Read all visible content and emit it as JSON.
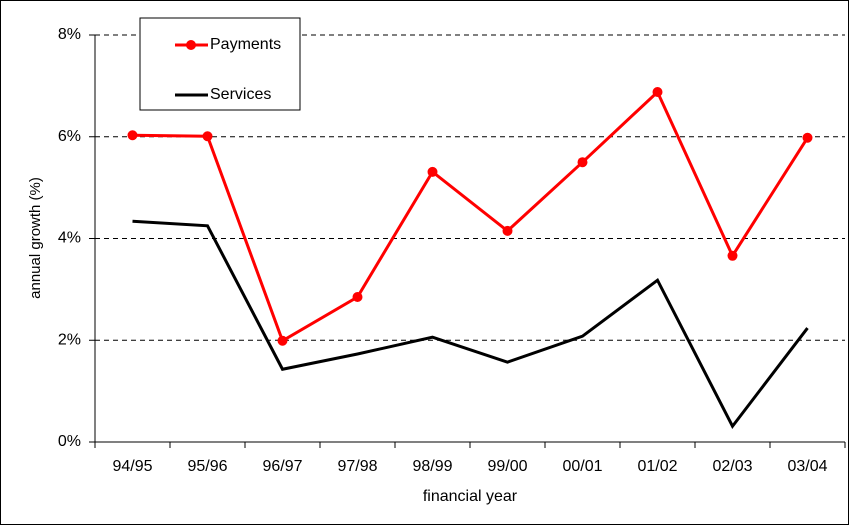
{
  "chart_data": {
    "type": "line",
    "x_label": "financial year",
    "y_label": "annual growth (%)",
    "categories": [
      "94/95",
      "95/96",
      "96/97",
      "97/98",
      "98/99",
      "99/00",
      "00/01",
      "01/02",
      "02/03",
      "03/04"
    ],
    "series": [
      {
        "name": "Payments",
        "color": "#ff0000",
        "marker": "circle",
        "values": [
          6.03,
          6.01,
          1.99,
          2.85,
          5.31,
          4.15,
          5.5,
          6.88,
          3.66,
          5.98
        ]
      },
      {
        "name": "Services",
        "color": "#000000",
        "values": [
          4.34,
          4.25,
          1.43,
          1.73,
          2.06,
          1.57,
          2.08,
          3.18,
          0.31,
          2.24
        ]
      }
    ],
    "ylim": [
      0,
      8
    ],
    "yticks": [
      {
        "value": 0,
        "label": "0%"
      },
      {
        "value": 2,
        "label": "2%"
      },
      {
        "value": 4,
        "label": "4%"
      },
      {
        "value": 6,
        "label": "6%"
      },
      {
        "value": 8,
        "label": "8%"
      }
    ],
    "grid": true,
    "legend": "upper left"
  }
}
